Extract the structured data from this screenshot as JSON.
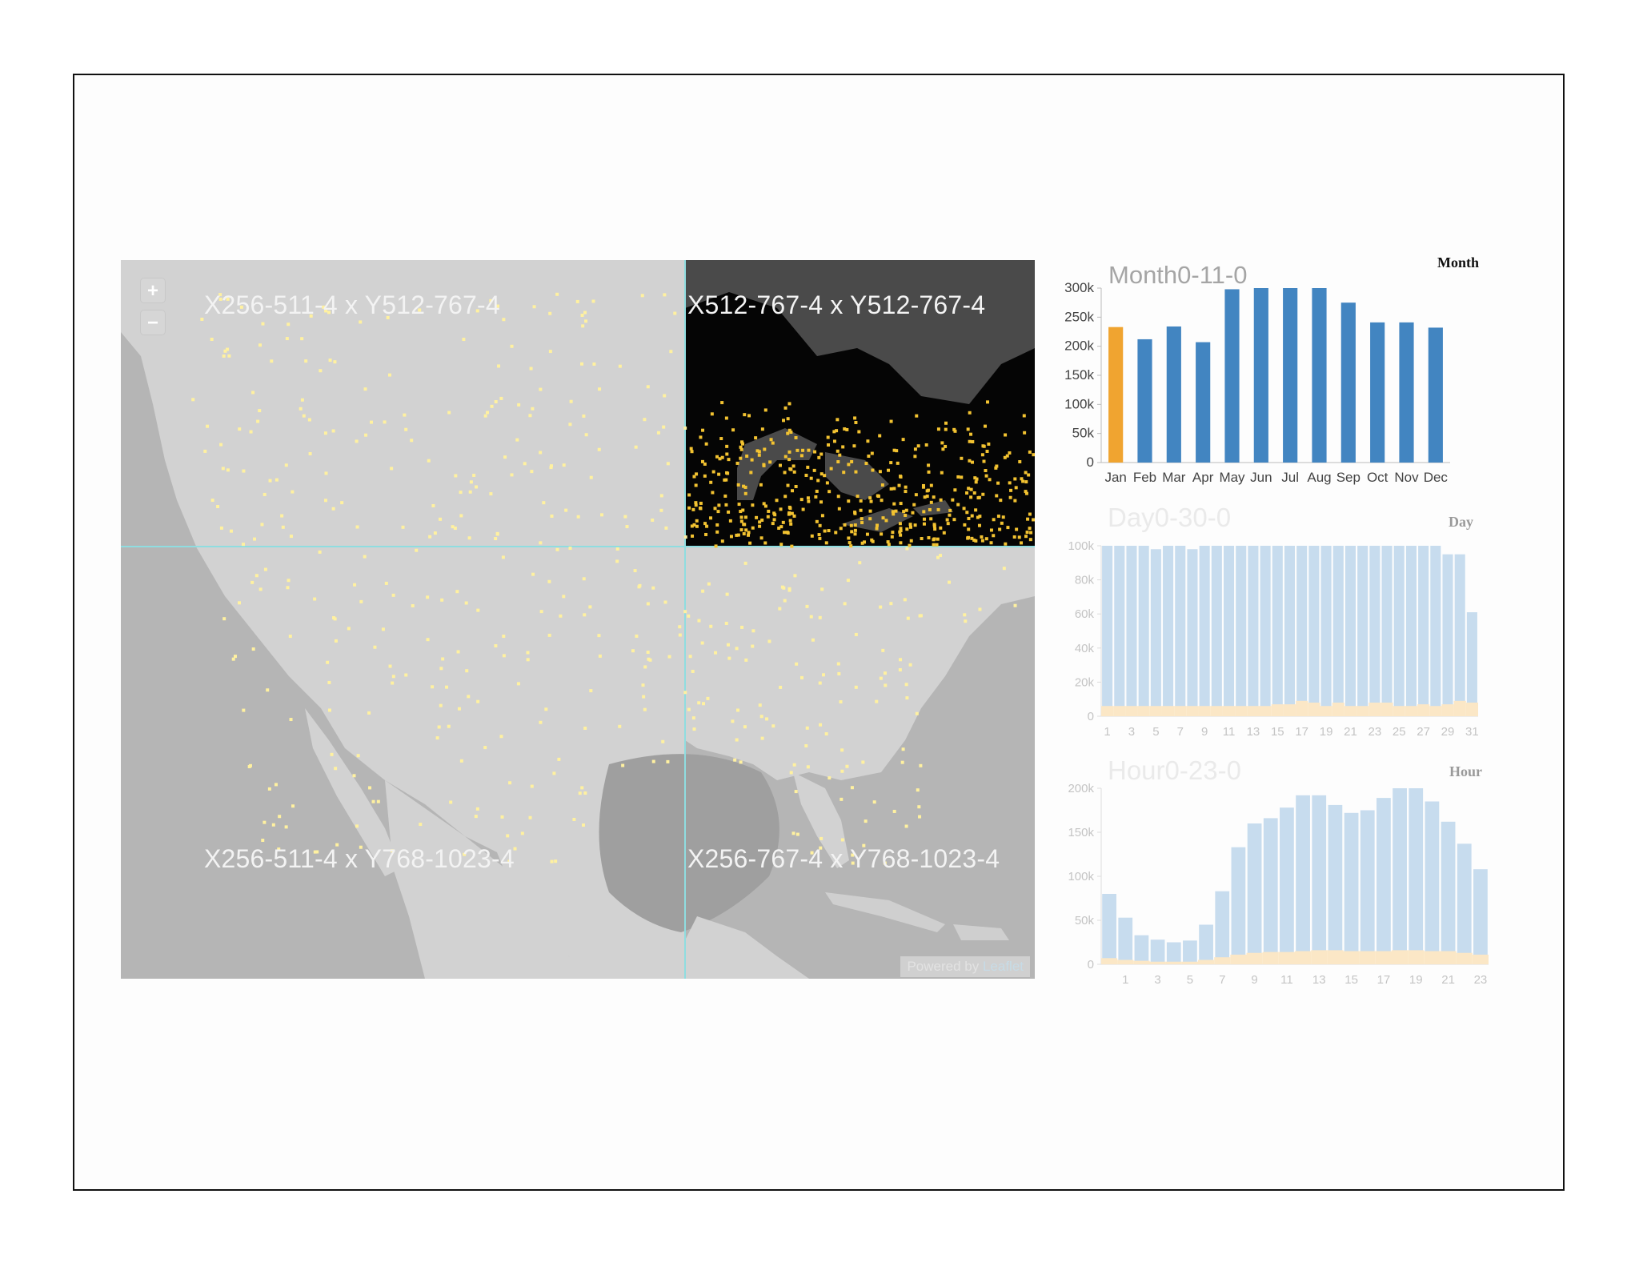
{
  "map": {
    "tiles": [
      {
        "label": "X256-511-4 x Y512-767-4"
      },
      {
        "label": "X512-767-4 x Y512-767-4"
      },
      {
        "label": "X256-511-4 x Y768-1023-4"
      },
      {
        "label": "X256-767-4 x Y768-1023-4"
      }
    ],
    "zoom_in_label": "+",
    "zoom_out_label": "−",
    "attribution_prefix": "Powered by ",
    "attribution_link": "Leaflet",
    "colors": {
      "land": "#d2d2d2",
      "water": "#b5b5b5",
      "dark_land": "#050505",
      "dark_water": "#4a4a4a",
      "dots": "#fff1a0",
      "dots_active": "#f3c331",
      "grid": "#8fdde0"
    }
  },
  "chart_data": [
    {
      "type": "bar",
      "title": "Month0-11-0",
      "tag": "Month",
      "categories": [
        "Jan",
        "Feb",
        "Mar",
        "Apr",
        "May",
        "Jun",
        "Jul",
        "Aug",
        "Sep",
        "Oct",
        "Nov",
        "Dec"
      ],
      "values": [
        233000,
        212000,
        234000,
        207000,
        298000,
        311000,
        319000,
        305000,
        275000,
        241000,
        241000,
        232000
      ],
      "highlight_index": 0,
      "yticks": [
        "0",
        "50k",
        "100k",
        "150k",
        "200k",
        "250k",
        "300k"
      ],
      "ylim": [
        0,
        300000
      ],
      "colors": {
        "bar": "#4285c1",
        "highlight": "#f0a430"
      }
    },
    {
      "type": "bar",
      "title": "Day0-30-0",
      "tag": "Day",
      "categories": [
        "1",
        "2",
        "3",
        "4",
        "5",
        "6",
        "7",
        "8",
        "9",
        "10",
        "11",
        "12",
        "13",
        "14",
        "15",
        "16",
        "17",
        "18",
        "19",
        "20",
        "21",
        "22",
        "23",
        "24",
        "25",
        "26",
        "27",
        "28",
        "29",
        "30",
        "31"
      ],
      "series": [
        {
          "values": [
            101000,
            101000,
            101000,
            100000,
            98000,
            101000,
            101000,
            98000,
            103000,
            101000,
            101000,
            101000,
            103000,
            101000,
            103000,
            103000,
            103000,
            103000,
            101000,
            103000,
            103000,
            103000,
            103000,
            103000,
            101000,
            101000,
            103000,
            103000,
            95000,
            95000,
            61000
          ]
        },
        {
          "values": [
            6000,
            6000,
            6000,
            6000,
            6000,
            6000,
            6000,
            6000,
            6000,
            6000,
            6000,
            6000,
            6000,
            6000,
            7000,
            7000,
            9000,
            8000,
            6000,
            8000,
            6000,
            6000,
            8000,
            8000,
            6000,
            6000,
            7000,
            6000,
            7000,
            9000,
            8000
          ]
        }
      ],
      "xticks": [
        "1",
        "3",
        "5",
        "7",
        "9",
        "11",
        "13",
        "15",
        "17",
        "19",
        "21",
        "23",
        "25",
        "27",
        "29",
        "31"
      ],
      "yticks": [
        "0",
        "20k",
        "40k",
        "60k",
        "80k",
        "100k"
      ],
      "ylim": [
        0,
        100000
      ],
      "colors": {
        "bar": "#c7dcee",
        "secondary": "#fbe7c6"
      }
    },
    {
      "type": "bar",
      "title": "Hour0-23-0",
      "tag": "Hour",
      "categories": [
        "0",
        "1",
        "2",
        "3",
        "4",
        "5",
        "6",
        "7",
        "8",
        "9",
        "10",
        "11",
        "12",
        "13",
        "14",
        "15",
        "16",
        "17",
        "18",
        "19",
        "20",
        "21",
        "22",
        "23"
      ],
      "series": [
        {
          "values": [
            80000,
            53000,
            33000,
            28000,
            25000,
            27000,
            45000,
            83000,
            133000,
            160000,
            166000,
            178000,
            192000,
            192000,
            181000,
            172000,
            175000,
            189000,
            207000,
            207000,
            185000,
            162000,
            137000,
            108000
          ]
        },
        {
          "values": [
            7000,
            5000,
            4000,
            3000,
            3000,
            3000,
            5000,
            8000,
            11000,
            13000,
            14000,
            14000,
            15000,
            16000,
            16000,
            15000,
            15000,
            15000,
            16000,
            16000,
            15000,
            15000,
            13000,
            11000
          ]
        }
      ],
      "xticks": [
        "1",
        "3",
        "5",
        "7",
        "9",
        "11",
        "13",
        "15",
        "17",
        "19",
        "21",
        "23"
      ],
      "yticks": [
        "0",
        "50k",
        "100k",
        "150k",
        "200k"
      ],
      "ylim": [
        0,
        200000
      ],
      "colors": {
        "bar": "#c7dcee",
        "secondary": "#fbe7c6"
      }
    }
  ]
}
